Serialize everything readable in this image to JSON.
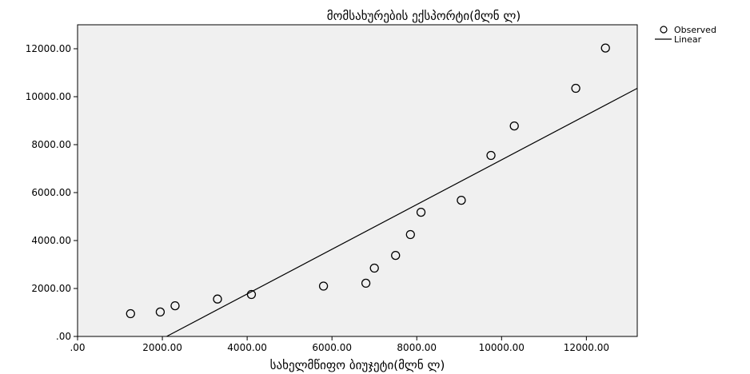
{
  "chart_data": {
    "type": "scatter",
    "title": "მომსახურების ექსპორტი(მლნ ლ)",
    "xlabel": "სახელმწიფო ბიუჯეტი(მლნ ლ)",
    "ylabel": "",
    "xlim": [
      0,
      13200
    ],
    "ylim": [
      0,
      13000
    ],
    "x_ticks": [
      0,
      2000,
      4000,
      6000,
      8000,
      10000,
      12000
    ],
    "x_tick_labels": [
      ".00",
      "2000.00",
      "4000.00",
      "6000.00",
      "8000.00",
      "10000.00",
      "12000.00"
    ],
    "y_ticks": [
      0,
      2000,
      4000,
      6000,
      8000,
      10000,
      12000
    ],
    "y_tick_labels": [
      ".00",
      "2000.00",
      "4000.00",
      "6000.00",
      "8000.00",
      "10000.00",
      "12000.00"
    ],
    "grid": false,
    "legend_position": "top-right, outside plot",
    "background_color": "#f0f0f0",
    "series": [
      {
        "name": "Observed",
        "kind": "markers",
        "marker": "hollow-circle",
        "x": [
          1250,
          1950,
          2300,
          3300,
          4100,
          5800,
          6800,
          7000,
          7500,
          7850,
          8100,
          9050,
          9750,
          10300,
          11750,
          12450
        ],
        "y": [
          950,
          1020,
          1280,
          1560,
          1750,
          2100,
          2220,
          2850,
          3380,
          4250,
          5180,
          5680,
          7550,
          8780,
          10350,
          12030
        ]
      },
      {
        "name": "Linear",
        "kind": "line",
        "x": [
          2100,
          13200
        ],
        "y": [
          0,
          10350
        ]
      }
    ]
  }
}
